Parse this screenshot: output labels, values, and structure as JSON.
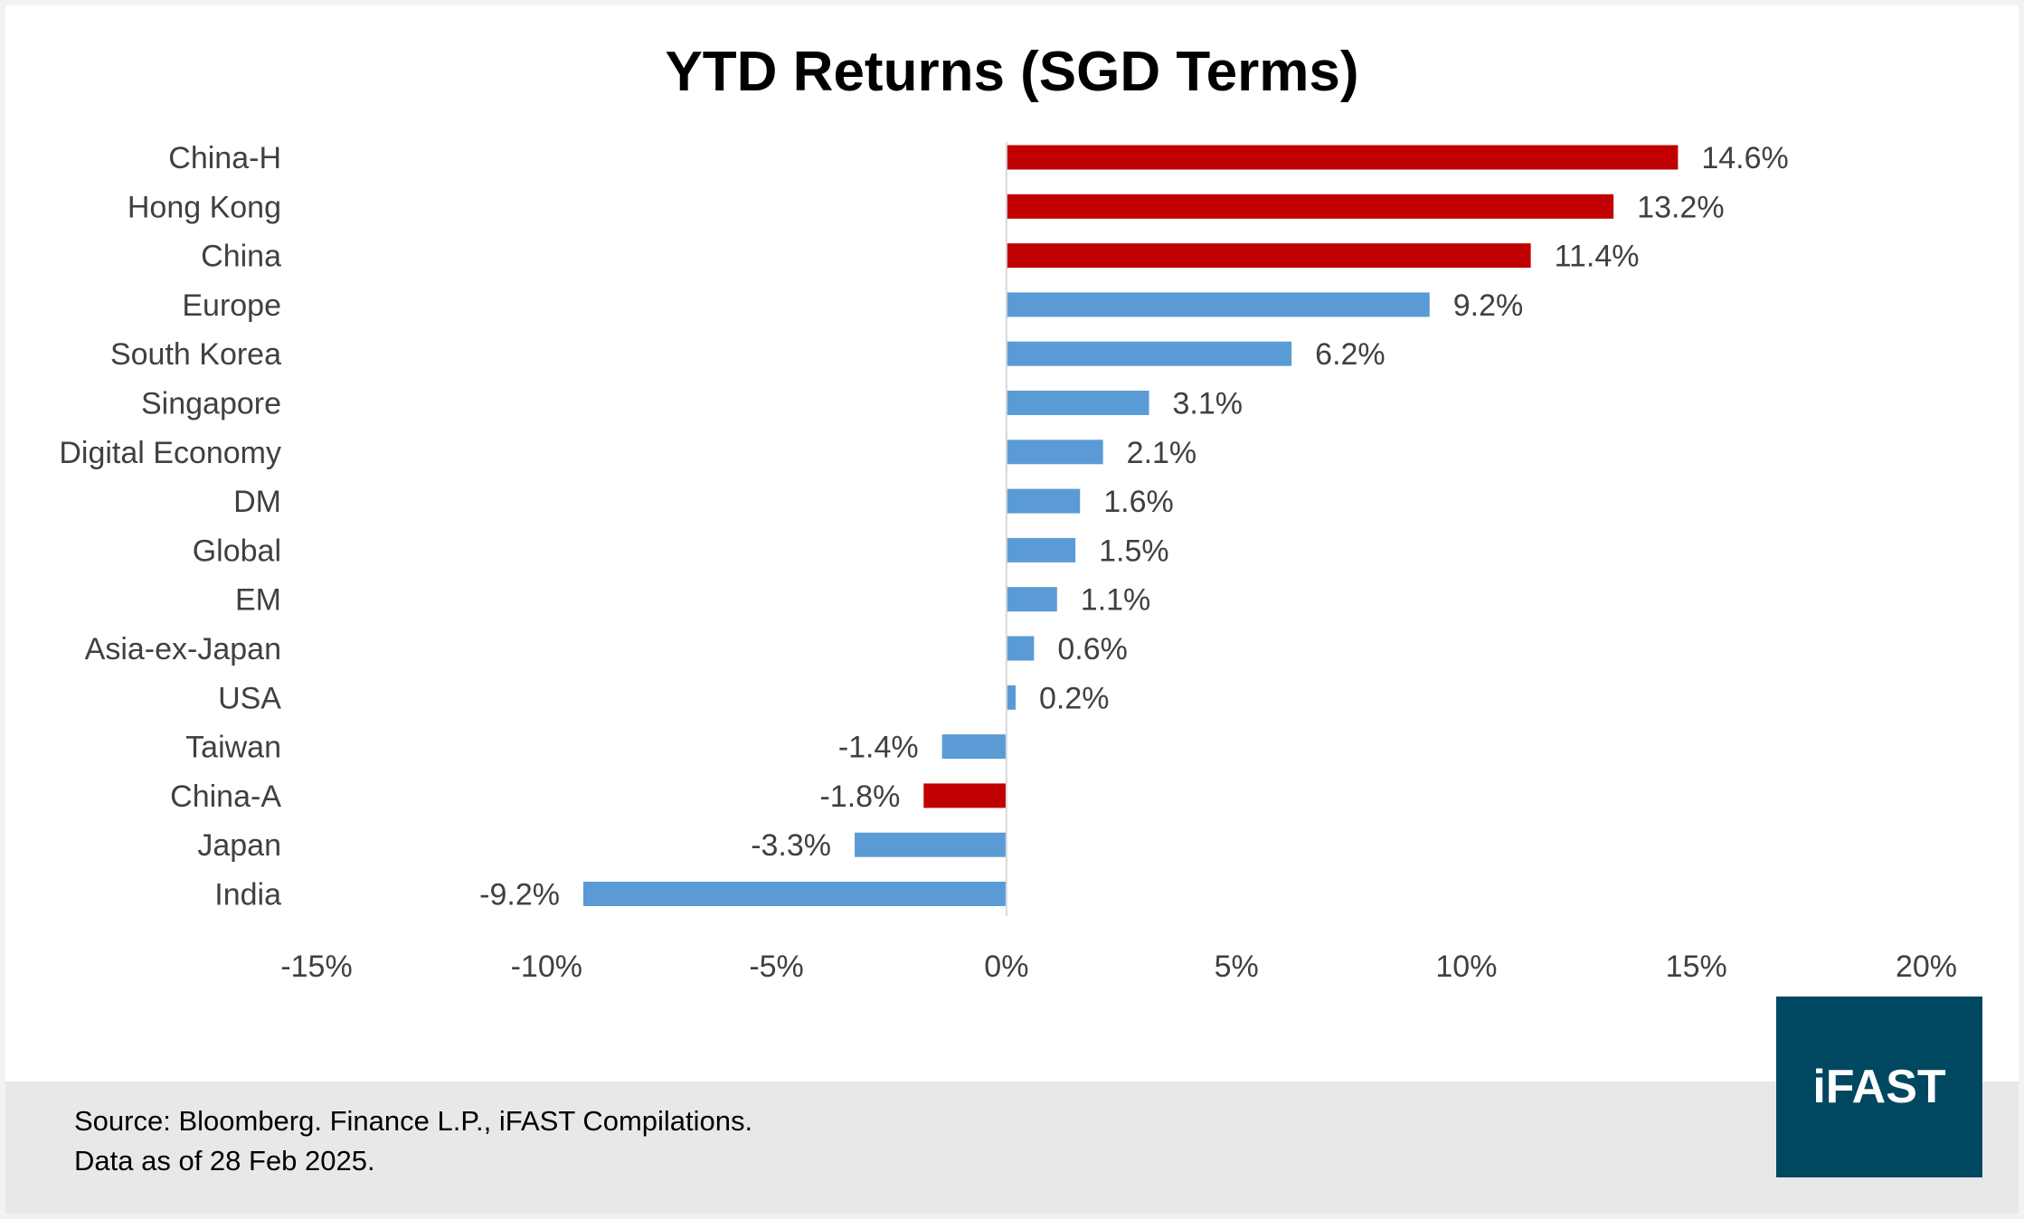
{
  "chart_data": {
    "type": "bar",
    "orientation": "horizontal",
    "title": "YTD Returns (SGD Terms)",
    "categories": [
      "China-H",
      "Hong Kong",
      "China",
      "Europe",
      "South Korea",
      "Singapore",
      "Digital Economy",
      "DM",
      "Global",
      "EM",
      "Asia-ex-Japan",
      "USA",
      "Taiwan",
      "China-A",
      "Japan",
      "India"
    ],
    "values": [
      14.6,
      13.2,
      11.4,
      9.2,
      6.2,
      3.1,
      2.1,
      1.6,
      1.5,
      1.1,
      0.6,
      0.2,
      -1.4,
      -1.8,
      -3.3,
      -9.2
    ],
    "data_labels": [
      "14.6%",
      "13.2%",
      "11.4%",
      "9.2%",
      "6.2%",
      "3.1%",
      "2.1%",
      "1.6%",
      "1.5%",
      "1.1%",
      "0.6%",
      "0.2%",
      "-1.4%",
      "-1.8%",
      "-3.3%",
      "-9.2%"
    ],
    "highlight": [
      "China-H",
      "Hong Kong",
      "China",
      "China-A"
    ],
    "colors": {
      "default": "#5b9bd5",
      "highlight": "#c00000"
    },
    "xlim": [
      -15,
      20
    ],
    "xticks": [
      -15,
      -10,
      -5,
      0,
      5,
      10,
      15,
      20
    ],
    "xtick_labels": [
      "-15%",
      "-10%",
      "-5%",
      "0%",
      "5%",
      "10%",
      "15%",
      "20%"
    ],
    "xlabel": "",
    "ylabel": "",
    "grid": false,
    "legend": "none"
  },
  "footer": {
    "source": "Source: Bloomberg. Finance L.P., iFAST Compilations.",
    "date": "Data as of 28 Feb 2025."
  },
  "logo": {
    "text": "iFAST",
    "color": "#004760"
  }
}
